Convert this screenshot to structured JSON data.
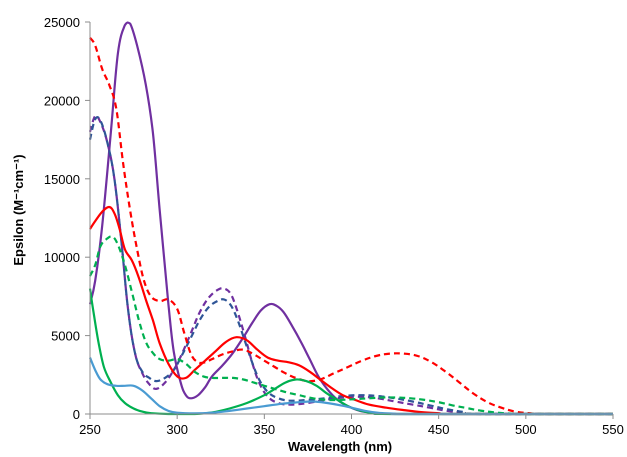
{
  "chart_data": {
    "type": "line",
    "xlabel": "Wavelength (nm)",
    "ylabel": "Epsilon (M⁻¹cm⁻¹)",
    "xlim": [
      250,
      550
    ],
    "ylim": [
      0,
      25000
    ],
    "xticks": [
      250,
      300,
      350,
      400,
      450,
      500,
      550
    ],
    "yticks": [
      0,
      5000,
      10000,
      15000,
      20000,
      25000
    ],
    "x_tick_labels": [
      "250",
      "300",
      "350",
      "400",
      "450",
      "500",
      "550"
    ],
    "y_tick_labels": [
      "0",
      "5000",
      "10000",
      "15000",
      "20000",
      "25000"
    ],
    "grid": false,
    "legend": "none",
    "series": [
      {
        "color": "#7030a0",
        "style": "solid",
        "points": [
          [
            250,
            7000
          ],
          [
            253,
            8500
          ],
          [
            257,
            12000
          ],
          [
            262,
            18000
          ],
          [
            266,
            23000
          ],
          [
            270,
            24800
          ],
          [
            273,
            24900
          ],
          [
            277,
            23500
          ],
          [
            282,
            21000
          ],
          [
            286,
            18000
          ],
          [
            290,
            13000
          ],
          [
            295,
            7000
          ],
          [
            298,
            4000
          ],
          [
            302,
            2000
          ],
          [
            305,
            1200
          ],
          [
            308,
            1000
          ],
          [
            312,
            1200
          ],
          [
            316,
            1700
          ],
          [
            320,
            2400
          ],
          [
            326,
            3100
          ],
          [
            332,
            3900
          ],
          [
            338,
            4900
          ],
          [
            343,
            5800
          ],
          [
            348,
            6600
          ],
          [
            353,
            7000
          ],
          [
            357,
            6900
          ],
          [
            361,
            6500
          ],
          [
            366,
            5600
          ],
          [
            371,
            4600
          ],
          [
            376,
            3500
          ],
          [
            381,
            2400
          ],
          [
            386,
            1600
          ],
          [
            392,
            900
          ],
          [
            398,
            500
          ],
          [
            405,
            200
          ],
          [
            412,
            80
          ],
          [
            420,
            20
          ],
          [
            430,
            0
          ],
          [
            550,
            0
          ]
        ]
      },
      {
        "color": "#7030a0",
        "style": "dashed",
        "points": [
          [
            250,
            18000
          ],
          [
            253,
            19000
          ],
          [
            256,
            18600
          ],
          [
            260,
            17300
          ],
          [
            264,
            15000
          ],
          [
            268,
            11000
          ],
          [
            272,
            6500
          ],
          [
            276,
            3800
          ],
          [
            280,
            2600
          ],
          [
            284,
            1900
          ],
          [
            288,
            1600
          ],
          [
            293,
            2000
          ],
          [
            298,
            2800
          ],
          [
            303,
            3900
          ],
          [
            308,
            5200
          ],
          [
            313,
            6500
          ],
          [
            318,
            7400
          ],
          [
            323,
            7900
          ],
          [
            327,
            8000
          ],
          [
            331,
            7600
          ],
          [
            335,
            6400
          ],
          [
            339,
            4900
          ],
          [
            343,
            3300
          ],
          [
            347,
            2000
          ],
          [
            352,
            1100
          ],
          [
            358,
            700
          ],
          [
            365,
            600
          ],
          [
            375,
            700
          ],
          [
            385,
            900
          ],
          [
            395,
            1050
          ],
          [
            405,
            1100
          ],
          [
            415,
            1000
          ],
          [
            425,
            800
          ],
          [
            435,
            600
          ],
          [
            445,
            400
          ],
          [
            455,
            200
          ],
          [
            465,
            80
          ],
          [
            475,
            0
          ],
          [
            550,
            0
          ]
        ]
      },
      {
        "color": "#2f5597",
        "style": "dashed",
        "points": [
          [
            250,
            17500
          ],
          [
            253,
            18800
          ],
          [
            256,
            18700
          ],
          [
            260,
            17300
          ],
          [
            264,
            15000
          ],
          [
            268,
            11000
          ],
          [
            272,
            6500
          ],
          [
            276,
            3800
          ],
          [
            280,
            2700
          ],
          [
            284,
            2300
          ],
          [
            288,
            2100
          ],
          [
            293,
            2300
          ],
          [
            298,
            2800
          ],
          [
            303,
            3800
          ],
          [
            308,
            4900
          ],
          [
            313,
            6000
          ],
          [
            318,
            6800
          ],
          [
            323,
            7200
          ],
          [
            327,
            7300
          ],
          [
            331,
            6900
          ],
          [
            335,
            5900
          ],
          [
            339,
            4600
          ],
          [
            343,
            3300
          ],
          [
            347,
            2200
          ],
          [
            352,
            1400
          ],
          [
            358,
            1000
          ],
          [
            365,
            850
          ],
          [
            375,
            900
          ],
          [
            385,
            1000
          ],
          [
            395,
            1150
          ],
          [
            405,
            1200
          ],
          [
            415,
            1150
          ],
          [
            425,
            1000
          ],
          [
            435,
            800
          ],
          [
            445,
            550
          ],
          [
            455,
            300
          ],
          [
            465,
            120
          ],
          [
            475,
            0
          ],
          [
            550,
            0
          ]
        ]
      },
      {
        "color": "#ff0000",
        "style": "dashed",
        "points": [
          [
            250,
            24000
          ],
          [
            253,
            23500
          ],
          [
            257,
            22000
          ],
          [
            261,
            21000
          ],
          [
            265,
            19500
          ],
          [
            269,
            16000
          ],
          [
            273,
            13000
          ],
          [
            277,
            10500
          ],
          [
            281,
            8500
          ],
          [
            285,
            7500
          ],
          [
            290,
            7200
          ],
          [
            295,
            7300
          ],
          [
            300,
            6700
          ],
          [
            304,
            5200
          ],
          [
            308,
            3800
          ],
          [
            312,
            3300
          ],
          [
            316,
            3300
          ],
          [
            320,
            3500
          ],
          [
            326,
            3800
          ],
          [
            332,
            4000
          ],
          [
            338,
            4100
          ],
          [
            344,
            3800
          ],
          [
            350,
            3400
          ],
          [
            356,
            3000
          ],
          [
            362,
            2600
          ],
          [
            368,
            2300
          ],
          [
            375,
            2100
          ],
          [
            382,
            2200
          ],
          [
            390,
            2600
          ],
          [
            398,
            3000
          ],
          [
            406,
            3400
          ],
          [
            414,
            3700
          ],
          [
            422,
            3850
          ],
          [
            430,
            3850
          ],
          [
            438,
            3700
          ],
          [
            446,
            3300
          ],
          [
            454,
            2700
          ],
          [
            462,
            2000
          ],
          [
            470,
            1300
          ],
          [
            478,
            750
          ],
          [
            486,
            400
          ],
          [
            494,
            150
          ],
          [
            502,
            50
          ],
          [
            510,
            0
          ],
          [
            550,
            0
          ]
        ]
      },
      {
        "color": "#ff0000",
        "style": "solid",
        "points": [
          [
            250,
            11800
          ],
          [
            253,
            12300
          ],
          [
            257,
            12900
          ],
          [
            261,
            13200
          ],
          [
            264,
            12800
          ],
          [
            267,
            11800
          ],
          [
            270,
            10500
          ],
          [
            274,
            9800
          ],
          [
            278,
            8700
          ],
          [
            282,
            7300
          ],
          [
            286,
            6000
          ],
          [
            290,
            4500
          ],
          [
            295,
            3200
          ],
          [
            300,
            2400
          ],
          [
            305,
            2300
          ],
          [
            310,
            2800
          ],
          [
            316,
            3400
          ],
          [
            322,
            4000
          ],
          [
            328,
            4600
          ],
          [
            334,
            4900
          ],
          [
            340,
            4700
          ],
          [
            346,
            4100
          ],
          [
            352,
            3600
          ],
          [
            358,
            3400
          ],
          [
            364,
            3300
          ],
          [
            370,
            3100
          ],
          [
            376,
            2700
          ],
          [
            382,
            2200
          ],
          [
            388,
            1700
          ],
          [
            395,
            1200
          ],
          [
            402,
            900
          ],
          [
            410,
            600
          ],
          [
            420,
            400
          ],
          [
            430,
            250
          ],
          [
            440,
            120
          ],
          [
            450,
            50
          ],
          [
            460,
            0
          ],
          [
            550,
            0
          ]
        ]
      },
      {
        "color": "#00b050",
        "style": "dashed",
        "points": [
          [
            250,
            8800
          ],
          [
            253,
            9500
          ],
          [
            256,
            10700
          ],
          [
            260,
            11200
          ],
          [
            263,
            11300
          ],
          [
            266,
            10800
          ],
          [
            270,
            9500
          ],
          [
            274,
            7800
          ],
          [
            278,
            6000
          ],
          [
            282,
            4600
          ],
          [
            286,
            3900
          ],
          [
            290,
            3500
          ],
          [
            295,
            3400
          ],
          [
            300,
            3500
          ],
          [
            305,
            3200
          ],
          [
            310,
            2700
          ],
          [
            315,
            2400
          ],
          [
            320,
            2300
          ],
          [
            326,
            2300
          ],
          [
            332,
            2300
          ],
          [
            338,
            2200
          ],
          [
            344,
            2000
          ],
          [
            350,
            1800
          ],
          [
            356,
            1600
          ],
          [
            362,
            1400
          ],
          [
            370,
            1200
          ],
          [
            378,
            1000
          ],
          [
            386,
            900
          ],
          [
            394,
            900
          ],
          [
            402,
            950
          ],
          [
            410,
            1000
          ],
          [
            418,
            1050
          ],
          [
            426,
            1050
          ],
          [
            434,
            1000
          ],
          [
            442,
            900
          ],
          [
            450,
            750
          ],
          [
            458,
            550
          ],
          [
            466,
            380
          ],
          [
            474,
            220
          ],
          [
            482,
            100
          ],
          [
            490,
            30
          ],
          [
            500,
            0
          ],
          [
            550,
            0
          ]
        ]
      },
      {
        "color": "#00b050",
        "style": "solid",
        "points": [
          [
            250,
            8000
          ],
          [
            252,
            6500
          ],
          [
            255,
            4500
          ],
          [
            258,
            3000
          ],
          [
            262,
            2000
          ],
          [
            266,
            1200
          ],
          [
            270,
            700
          ],
          [
            275,
            350
          ],
          [
            280,
            150
          ],
          [
            285,
            50
          ],
          [
            295,
            0
          ],
          [
            310,
            0
          ],
          [
            320,
            100
          ],
          [
            330,
            350
          ],
          [
            340,
            700
          ],
          [
            350,
            1200
          ],
          [
            356,
            1600
          ],
          [
            362,
            2000
          ],
          [
            368,
            2200
          ],
          [
            374,
            2100
          ],
          [
            380,
            1800
          ],
          [
            386,
            1300
          ],
          [
            392,
            900
          ],
          [
            398,
            500
          ],
          [
            404,
            250
          ],
          [
            410,
            100
          ],
          [
            418,
            30
          ],
          [
            425,
            0
          ],
          [
            550,
            0
          ]
        ]
      },
      {
        "color": "#4a9bd2",
        "style": "solid",
        "points": [
          [
            250,
            3600
          ],
          [
            253,
            2800
          ],
          [
            256,
            2200
          ],
          [
            260,
            1900
          ],
          [
            265,
            1800
          ],
          [
            270,
            1800
          ],
          [
            275,
            1800
          ],
          [
            280,
            1500
          ],
          [
            285,
            1000
          ],
          [
            290,
            500
          ],
          [
            295,
            200
          ],
          [
            300,
            80
          ],
          [
            310,
            40
          ],
          [
            320,
            80
          ],
          [
            330,
            200
          ],
          [
            340,
            350
          ],
          [
            350,
            500
          ],
          [
            360,
            650
          ],
          [
            370,
            750
          ],
          [
            378,
            800
          ],
          [
            386,
            700
          ],
          [
            394,
            550
          ],
          [
            400,
            400
          ],
          [
            408,
            200
          ],
          [
            415,
            80
          ],
          [
            425,
            20
          ],
          [
            435,
            0
          ],
          [
            550,
            0
          ]
        ]
      }
    ]
  }
}
